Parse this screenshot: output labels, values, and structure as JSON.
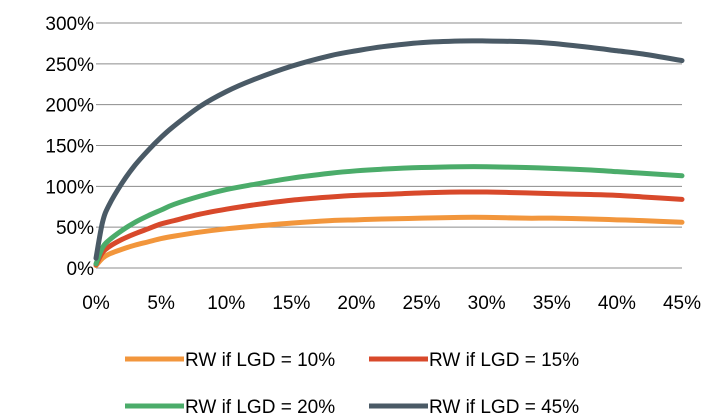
{
  "chart_data": {
    "type": "line",
    "title": "",
    "xlabel": "",
    "ylabel": "",
    "xlim": [
      0,
      45
    ],
    "ylim": [
      0,
      300
    ],
    "x_ticks": [
      0,
      5,
      10,
      15,
      20,
      25,
      30,
      35,
      40,
      45
    ],
    "x_tick_labels": [
      "0%",
      "5%",
      "10%",
      "15%",
      "20%",
      "25%",
      "30%",
      "35%",
      "40%",
      "45%"
    ],
    "y_ticks": [
      0,
      50,
      100,
      150,
      200,
      250,
      300
    ],
    "y_tick_labels": [
      "0%",
      "50%",
      "100%",
      "150%",
      "200%",
      "250%",
      "300%"
    ],
    "grid": "horizontal",
    "legend_position": "bottom",
    "x": [
      0,
      0.5,
      1,
      2,
      3,
      4,
      5,
      6,
      8,
      10,
      12,
      15,
      18,
      20,
      22,
      25,
      28,
      30,
      33,
      35,
      38,
      40,
      42,
      45
    ],
    "series": [
      {
        "name": "RW if LGD = 10%",
        "color": "#f2963c",
        "values": [
          3,
          12,
          17,
          23,
          28,
          32,
          36,
          39,
          44,
          48,
          51,
          55,
          58,
          59,
          60,
          61,
          62,
          62,
          61,
          61,
          60,
          59,
          58,
          56
        ]
      },
      {
        "name": "RW if LGD = 15%",
        "color": "#d8492b",
        "values": [
          4,
          19,
          26,
          35,
          42,
          48,
          54,
          58,
          66,
          72,
          77,
          83,
          87,
          89,
          90,
          92,
          93,
          93,
          92,
          91,
          90,
          89,
          87,
          84
        ]
      },
      {
        "name": "RW if LGD = 20%",
        "color": "#4bac6a",
        "values": [
          5,
          25,
          34,
          46,
          56,
          64,
          71,
          78,
          88,
          96,
          102,
          110,
          116,
          119,
          121,
          123,
          124,
          124,
          123,
          122,
          120,
          118,
          116,
          113
        ]
      },
      {
        "name": "RW if LGD = 45%",
        "color": "#4a5a66",
        "values": [
          12,
          56,
          77,
          104,
          126,
          144,
          160,
          174,
          198,
          216,
          230,
          247,
          260,
          266,
          271,
          276,
          278,
          278,
          277,
          275,
          270,
          266,
          262,
          254
        ]
      }
    ]
  }
}
